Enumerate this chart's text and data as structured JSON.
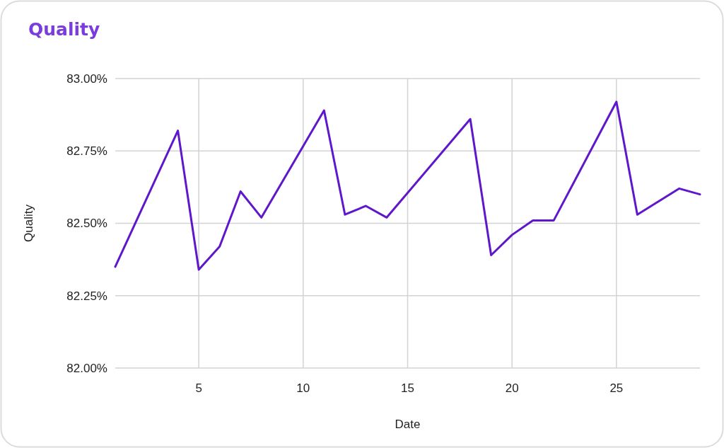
{
  "chart_data": {
    "type": "line",
    "title": "Quality",
    "xlabel": "Date",
    "ylabel": "Quality",
    "x": [
      1,
      4,
      5,
      6,
      7,
      8,
      11,
      12,
      13,
      14,
      18,
      19,
      20,
      21,
      22,
      25,
      26,
      28,
      29
    ],
    "series": [
      {
        "color": "#5f17cc",
        "values": [
          82.35,
          82.82,
          82.34,
          82.42,
          82.61,
          82.52,
          82.89,
          82.53,
          82.56,
          82.52,
          82.86,
          82.39,
          82.46,
          82.51,
          82.51,
          82.92,
          82.53,
          82.62,
          82.6
        ]
      }
    ],
    "xlim": [
      1,
      29
    ],
    "xticks": [
      5,
      10,
      15,
      20,
      25
    ],
    "ylim": [
      82,
      83
    ],
    "yticks": [
      {
        "value": 82,
        "label": "82.00%"
      },
      {
        "value": 82.25,
        "label": "82.25%"
      },
      {
        "value": 82.5,
        "label": "82.50%"
      },
      {
        "value": 82.75,
        "label": "82.75%"
      },
      {
        "value": 83,
        "label": "83.00%"
      }
    ],
    "grid": true,
    "line_style": "solid"
  }
}
